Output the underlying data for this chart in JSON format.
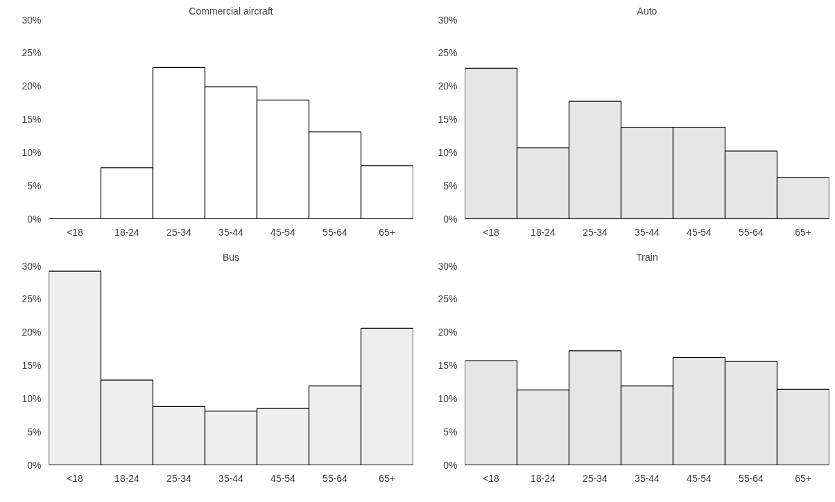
{
  "chart_data": [
    {
      "type": "bar",
      "title": "Commercial aircraft",
      "categories": [
        "<18",
        "18-24",
        "25-34",
        "35-44",
        "45-54",
        "55-64",
        "65+"
      ],
      "values": [
        0,
        7.7,
        22.8,
        19.9,
        17.9,
        13.1,
        8.0
      ],
      "color": "#ffffff",
      "ylim": [
        0,
        30
      ],
      "yticks": [
        {
          "value": 0,
          "label": "0%"
        },
        {
          "value": 5,
          "label": "5%"
        },
        {
          "value": 10,
          "label": "10%"
        },
        {
          "value": 15,
          "label": "15%"
        },
        {
          "value": 20,
          "label": "20%"
        },
        {
          "value": 25,
          "label": "25%"
        },
        {
          "value": 30,
          "label": "30%"
        }
      ],
      "grid": false
    },
    {
      "type": "bar",
      "title": "Auto",
      "categories": [
        "<18",
        "18-24",
        "25-34",
        "35-44",
        "45-54",
        "55-64",
        "65+"
      ],
      "values": [
        22.7,
        10.7,
        17.7,
        13.8,
        13.8,
        10.2,
        6.2
      ],
      "color": "#e6e6e6",
      "ylim": [
        0,
        30
      ],
      "yticks": [
        {
          "value": 0,
          "label": "0%"
        },
        {
          "value": 5,
          "label": "5%"
        },
        {
          "value": 10,
          "label": "10%"
        },
        {
          "value": 15,
          "label": "15%"
        },
        {
          "value": 20,
          "label": "20%"
        },
        {
          "value": 25,
          "label": "25%"
        },
        {
          "value": 30,
          "label": "30%"
        }
      ],
      "grid": false
    },
    {
      "type": "bar",
      "title": "Bus",
      "categories": [
        "<18",
        "18-24",
        "25-34",
        "35-44",
        "45-54",
        "55-64",
        "65+"
      ],
      "values": [
        29.2,
        12.8,
        8.8,
        8.1,
        8.5,
        11.9,
        20.6
      ],
      "color": "#eeeeee",
      "ylim": [
        0,
        30
      ],
      "yticks": [
        {
          "value": 0,
          "label": "0%"
        },
        {
          "value": 5,
          "label": "5%"
        },
        {
          "value": 10,
          "label": "10%"
        },
        {
          "value": 15,
          "label": "15%"
        },
        {
          "value": 20,
          "label": "20%"
        },
        {
          "value": 25,
          "label": "25%"
        },
        {
          "value": 30,
          "label": "30%"
        }
      ],
      "grid": false
    },
    {
      "type": "bar",
      "title": "Train",
      "categories": [
        "<18",
        "18-24",
        "25-34",
        "35-44",
        "45-54",
        "55-64",
        "65+"
      ],
      "values": [
        15.7,
        11.3,
        17.2,
        11.9,
        16.2,
        15.6,
        11.4
      ],
      "color": "#e6e6e6",
      "ylim": [
        0,
        30
      ],
      "yticks": [
        {
          "value": 0,
          "label": "0%"
        },
        {
          "value": 5,
          "label": "5%"
        },
        {
          "value": 10,
          "label": "10%"
        },
        {
          "value": 15,
          "label": "15%"
        },
        {
          "value": 20,
          "label": "20%"
        },
        {
          "value": 25,
          "label": "25%"
        },
        {
          "value": 30,
          "label": "30%"
        }
      ],
      "grid": false
    }
  ]
}
